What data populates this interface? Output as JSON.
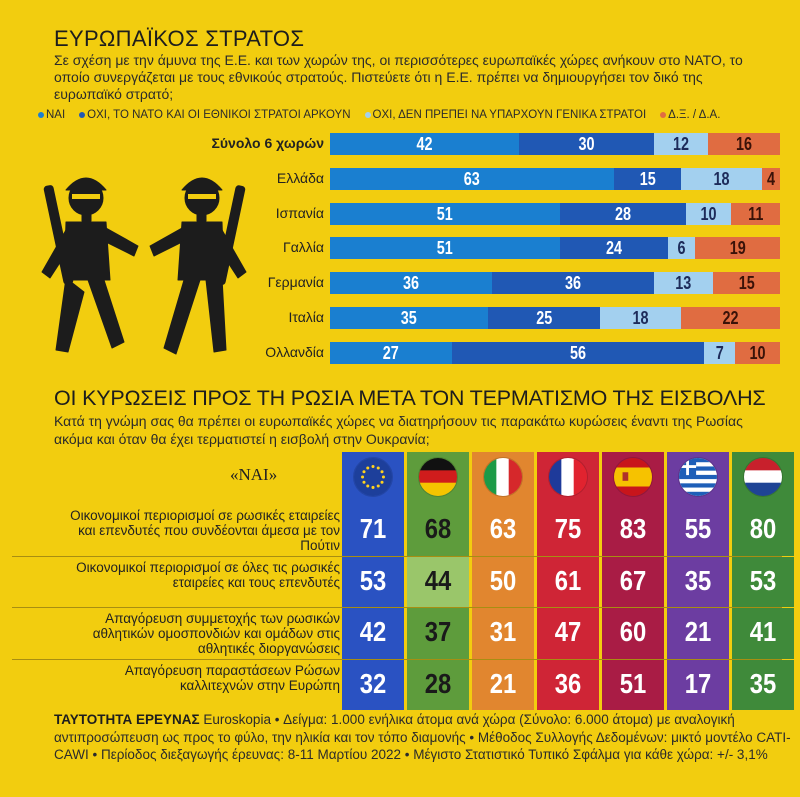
{
  "survey1": {
    "title": "ΕΥΡΩΠΑΪΚΟΣ ΣΤΡΑΤΟΣ",
    "intro": "Σε σχέση με την άμυνα της Ε.Ε. και των χωρών της, οι περισσότερες ευρωπαϊκές χώρες ανήκουν στο ΝΑΤΟ, το οποίο συνεργάζεται με τους εθνικούς στρατούς. Πιστεύετε ότι η Ε.Ε. πρέπει να δημιουργήσει τον δικό της ευρωπαϊκό στρατό;"
  },
  "survey2": {
    "title": "ΟΙ ΚΥΡΩΣΕΙΣ ΠΡΟΣ ΤΗ ΡΩΣΙΑ ΜΕΤΑ ΤΟΝ ΤΕΡΜΑΤΙΣΜΟ ΤΗΣ ΕΙΣΒΟΛΗΣ",
    "intro": "Κατά τη γνώμη σας θα πρέπει οι ευρωπαϊκές χώρες να διατηρήσουν τις παρακάτω κυρώσεις έναντι της Ρωσίας ακόμα και όταν θα έχει τερματιστεί η εισβολή στην Ουκρανία;",
    "answer_label": "«ΝΑΙ»"
  },
  "footer": {
    "heading": "ΤΑΥΤΟΤΗΤΑ ΕΡΕΥΝΑΣ",
    "text": "Euroskopia • Δείγμα: 1.000 ενήλικα άτομα ανά χώρα (Σύνολο: 6.000 άτομα) με αναλογική αντιπροσώπευση ως προς το φύλο, την ηλικία και τον τόπο διαμονής • Μέθοδος Συλλογής Δεδομένων: μικτό μοντέλο CATI-CAWI • Περίοδος διεξαγωγής έρευνας: 8-11 Μαρτίου 2022 • Μέγιστο Στατιστικό Τυπικό Σφάλμα για κάθε χώρα: +/- 3,1%"
  },
  "chart_data": [
    {
      "type": "bar",
      "stacked": true,
      "orientation": "horizontal",
      "title": "ΕΥΡΩΠΑΪΚΟΣ ΣΤΡΑΤΟΣ",
      "categories": [
        "Σύνολο 6 χωρών",
        "Ελλάδα",
        "Ισπανία",
        "Γαλλία",
        "Γερμανία",
        "Ιταλία",
        "Ολλανδία"
      ],
      "series": [
        {
          "name": "ΝΑΙ",
          "color": "#1a7fd0",
          "values": [
            42,
            63,
            51,
            51,
            36,
            35,
            27
          ]
        },
        {
          "name": "ΟΧΙ, ΤΟ ΝΑΤΟ ΚΑΙ ΟΙ ΕΘΝΙΚΟΙ ΣΤΡΑΤΟΙ ΑΡΚΟΥΝ",
          "color": "#2058b4",
          "values": [
            30,
            15,
            28,
            24,
            36,
            25,
            56
          ]
        },
        {
          "name": "ΟΧΙ, ΔΕΝ ΠΡΕΠΕΙ ΝΑ ΥΠΑΡΧΟΥΝ ΓΕΝΙΚΑ ΣΤΡΑΤΟΙ",
          "color": "#a3d0ef",
          "values": [
            12,
            18,
            10,
            6,
            13,
            18,
            7
          ]
        },
        {
          "name": "Δ.Ξ. / Δ.Α.",
          "color": "#e06c41",
          "values": [
            16,
            4,
            11,
            19,
            15,
            22,
            10
          ]
        }
      ]
    },
    {
      "type": "table",
      "title": "ΟΙ ΚΥΡΩΣΕΙΣ ΠΡΟΣ ΤΗ ΡΩΣΙΑ ΜΕΤΑ ΤΟΝ ΤΕΡΜΑΤΙΣΜΟ ΤΗΣ ΕΙΣΒΟΛΗΣ",
      "columns": [
        {
          "flag": "eu-flag",
          "color": "#2a52c2",
          "light": "#94bde6"
        },
        {
          "flag": "germany-flag",
          "color": "#5e9c3c",
          "light": "#9ac66a"
        },
        {
          "flag": "italy-flag",
          "color": "#e1862f",
          "light": "#f0a553"
        },
        {
          "flag": "france-flag",
          "color": "#cf2536",
          "light": "#db4556"
        },
        {
          "flag": "spain-flag",
          "color": "#a91c45",
          "light": "#bf3b5e"
        },
        {
          "flag": "greece-flag",
          "color": "#6c3da1",
          "light": "#8a5cbc"
        },
        {
          "flag": "netherlands-flag",
          "color": "#3f8a3a",
          "light": "#5da24f"
        }
      ],
      "rows": [
        {
          "label": "Οικονομικοί περιορισμοί σε ρωσικές εταιρείες και επενδυτές που συνδέονται άμεσα με τον Πούτιν",
          "values": [
            71,
            68,
            63,
            75,
            83,
            55,
            80
          ]
        },
        {
          "label": "Οικονομικοί περιορισμοί σε όλες τις ρωσικές εταιρείες και τους επενδυτές",
          "values": [
            53,
            44,
            50,
            61,
            67,
            35,
            53
          ]
        },
        {
          "label": "Απαγόρευση συμμετοχής των ρωσικών αθλητικών ομοσπονδιών και ομάδων στις αθλητικές διοργανώσεις",
          "values": [
            42,
            37,
            31,
            47,
            60,
            21,
            41
          ]
        },
        {
          "label": "Απαγόρευση παραστάσεων Ρώσων καλλιτεχνών στην Ευρώπη",
          "values": [
            32,
            28,
            21,
            36,
            51,
            17,
            35
          ]
        }
      ]
    }
  ]
}
